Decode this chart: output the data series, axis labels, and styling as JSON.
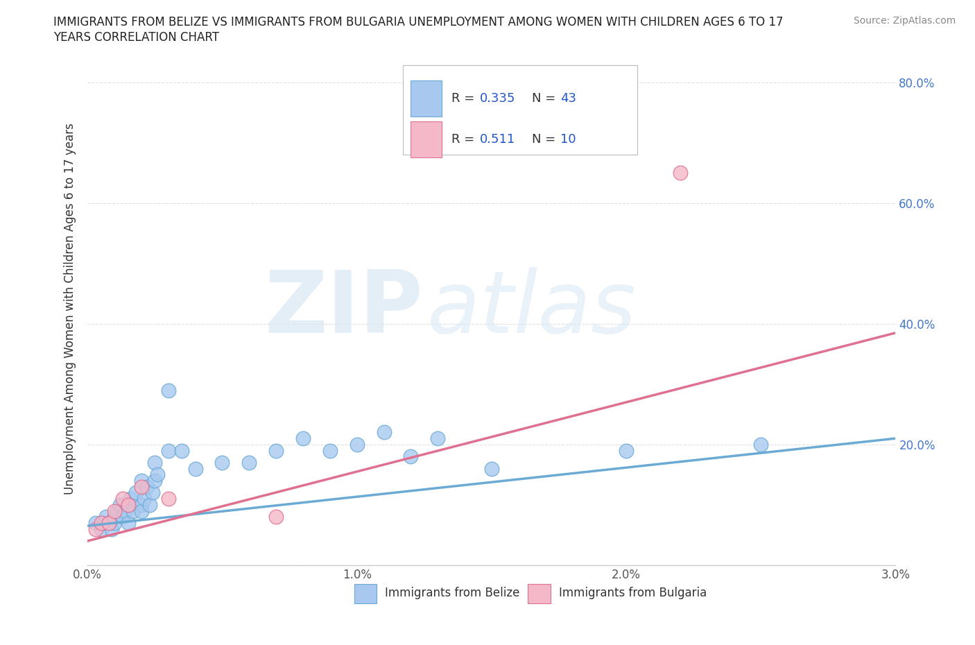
{
  "title_line1": "IMMIGRANTS FROM BELIZE VS IMMIGRANTS FROM BULGARIA UNEMPLOYMENT AMONG WOMEN WITH CHILDREN AGES 6 TO 17",
  "title_line2": "YEARS CORRELATION CHART",
  "source": "Source: ZipAtlas.com",
  "ylabel_label": "Unemployment Among Women with Children Ages 6 to 17 years",
  "xlim": [
    0.0,
    0.03
  ],
  "ylim": [
    0.0,
    0.85
  ],
  "xticks": [
    0.0,
    0.005,
    0.01,
    0.015,
    0.02,
    0.025,
    0.03
  ],
  "xtick_labels": [
    "0.0%",
    "",
    "1.0%",
    "",
    "2.0%",
    "",
    "3.0%"
  ],
  "yticks": [
    0.0,
    0.2,
    0.4,
    0.6,
    0.8
  ],
  "ytick_labels": [
    "",
    "20.0%",
    "40.0%",
    "60.0%",
    "80.0%"
  ],
  "belize_color": "#a8c8f0",
  "belize_edge": "#6aaad4",
  "bulgaria_color": "#f5b8c8",
  "bulgaria_edge": "#e07090",
  "belize_R": 0.335,
  "belize_N": 43,
  "bulgaria_R": 0.511,
  "bulgaria_N": 10,
  "belize_x": [
    0.0003,
    0.0005,
    0.0006,
    0.0007,
    0.0008,
    0.0009,
    0.001,
    0.001,
    0.0011,
    0.0012,
    0.0013,
    0.0014,
    0.0015,
    0.0015,
    0.0016,
    0.0017,
    0.0018,
    0.002,
    0.002,
    0.002,
    0.0021,
    0.0022,
    0.0023,
    0.0024,
    0.0025,
    0.0025,
    0.0026,
    0.003,
    0.003,
    0.0035,
    0.004,
    0.005,
    0.006,
    0.007,
    0.008,
    0.009,
    0.01,
    0.011,
    0.012,
    0.013,
    0.015,
    0.02,
    0.025
  ],
  "belize_y": [
    0.07,
    0.06,
    0.07,
    0.08,
    0.07,
    0.06,
    0.07,
    0.08,
    0.09,
    0.1,
    0.08,
    0.09,
    0.1,
    0.07,
    0.11,
    0.09,
    0.12,
    0.1,
    0.14,
    0.09,
    0.11,
    0.13,
    0.1,
    0.12,
    0.14,
    0.17,
    0.15,
    0.29,
    0.19,
    0.19,
    0.16,
    0.17,
    0.17,
    0.19,
    0.21,
    0.19,
    0.2,
    0.22,
    0.18,
    0.21,
    0.16,
    0.19,
    0.2
  ],
  "bulgaria_x": [
    0.0003,
    0.0005,
    0.0008,
    0.001,
    0.0013,
    0.0015,
    0.002,
    0.003,
    0.007,
    0.022
  ],
  "bulgaria_y": [
    0.06,
    0.07,
    0.07,
    0.09,
    0.11,
    0.1,
    0.13,
    0.11,
    0.08,
    0.65
  ],
  "belize_trend_x": [
    0.0,
    0.03
  ],
  "belize_trend_y": [
    0.065,
    0.21
  ],
  "bulgaria_trend_x": [
    0.0,
    0.03
  ],
  "bulgaria_trend_y": [
    0.04,
    0.385
  ],
  "watermark_zip": "ZIP",
  "watermark_atlas": "atlas",
  "background_color": "#ffffff",
  "grid_color": "#e0e0e0",
  "legend_text_color": "#2255cc",
  "legend_label_color": "#333333"
}
